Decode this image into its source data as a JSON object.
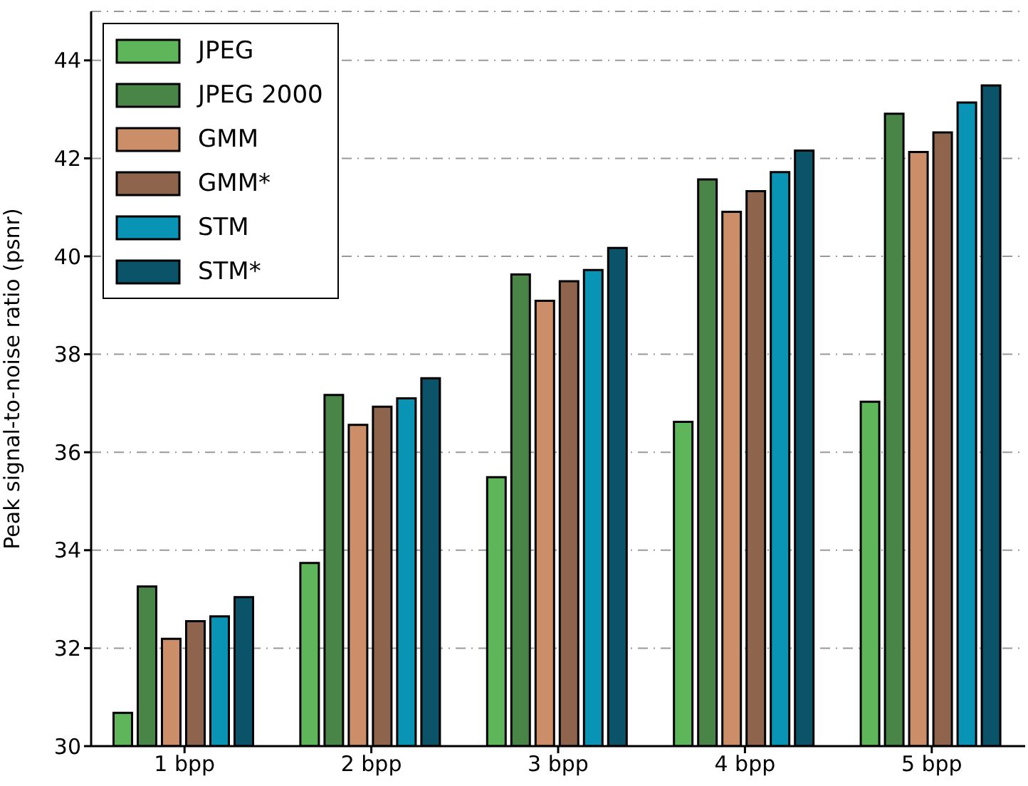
{
  "chart_data": {
    "type": "bar",
    "ylabel": "Peak signal-to-noise ratio (psnr)",
    "categories": [
      "1 bpp",
      "2 bpp",
      "3 bpp",
      "4 bpp",
      "5 bpp"
    ],
    "series": [
      {
        "name": "JPEG",
        "color": "#5fb65a",
        "values": [
          30.68,
          33.74,
          35.49,
          36.62,
          37.03
        ]
      },
      {
        "name": "JPEG 2000",
        "color": "#4a8548",
        "values": [
          33.26,
          37.17,
          39.63,
          41.57,
          42.91
        ]
      },
      {
        "name": "GMM",
        "color": "#cc8e69",
        "values": [
          32.19,
          36.56,
          39.09,
          40.91,
          42.13
        ]
      },
      {
        "name": "GMM*",
        "color": "#8e654c",
        "values": [
          32.55,
          36.93,
          39.49,
          41.33,
          42.53
        ]
      },
      {
        "name": "STM",
        "color": "#0993b4",
        "values": [
          32.65,
          37.1,
          39.72,
          41.72,
          43.14
        ]
      },
      {
        "name": "STM*",
        "color": "#0a5369",
        "values": [
          33.04,
          37.51,
          40.17,
          42.16,
          43.49
        ]
      }
    ],
    "ylim": [
      30,
      45
    ],
    "yticks": [
      30,
      32,
      34,
      36,
      38,
      40,
      42,
      44
    ],
    "grid": "y",
    "legend": "top left"
  }
}
